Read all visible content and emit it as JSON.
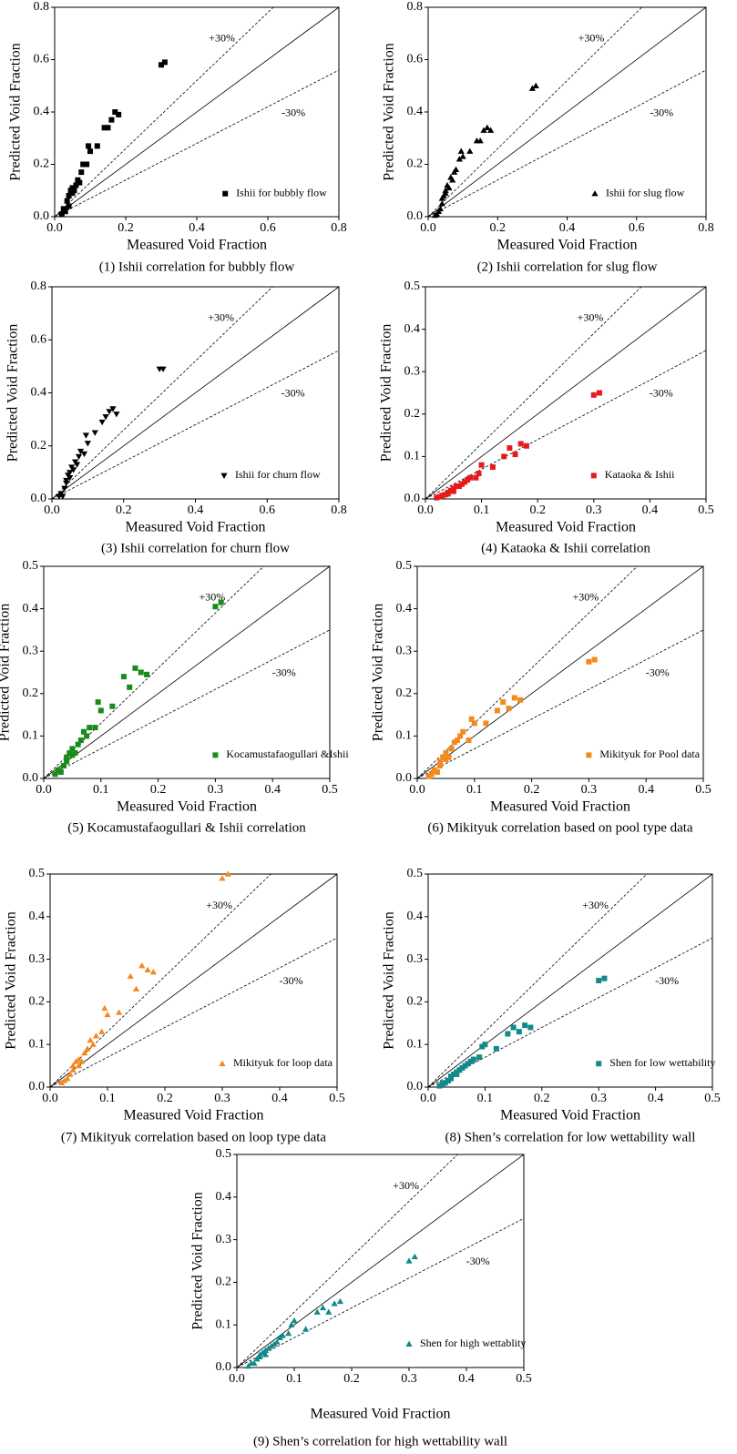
{
  "chart_data": [
    {
      "type": "scatter",
      "title": "(1) Ishii correlation for bubbly flow",
      "xlabel": "Measured Void Fraction",
      "ylabel": "Predicted Void Fraction",
      "xlim": [
        0,
        0.8
      ],
      "ylim": [
        0,
        0.8
      ],
      "xticks": [
        {
          "value": 0,
          "label": "0.0"
        },
        0.2,
        0.4,
        0.6,
        0.8
      ],
      "yticks": [
        {
          "value": 0,
          "label": "0.0"
        },
        0.2,
        0.4,
        0.6,
        0.8
      ],
      "reference_slopes": [
        1,
        1.3,
        0.7
      ],
      "annotations": [
        "+30%",
        "-30%"
      ],
      "legend": "lower right",
      "series": [
        {
          "name": "Ishii for bubbly flow",
          "color": "#000000",
          "marker": "square",
          "x": [
            0.02,
            0.025,
            0.03,
            0.035,
            0.04,
            0.04,
            0.045,
            0.05,
            0.05,
            0.055,
            0.06,
            0.065,
            0.07,
            0.075,
            0.08,
            0.09,
            0.095,
            0.1,
            0.12,
            0.14,
            0.15,
            0.16,
            0.17,
            0.18,
            0.3,
            0.31
          ],
          "values": [
            0.01,
            0.03,
            0.02,
            0.06,
            0.04,
            0.08,
            0.1,
            0.09,
            0.11,
            0.1,
            0.12,
            0.14,
            0.13,
            0.17,
            0.2,
            0.2,
            0.27,
            0.25,
            0.27,
            0.34,
            0.34,
            0.37,
            0.4,
            0.39,
            0.58,
            0.59
          ]
        }
      ]
    },
    {
      "type": "scatter",
      "title": "(2) Ishii correlation for slug flow",
      "xlabel": "Measured Void Fraction",
      "ylabel": "Predicted Void Fraction",
      "xlim": [
        0,
        0.8
      ],
      "ylim": [
        0,
        0.8
      ],
      "xticks": [
        {
          "value": 0,
          "label": "0.0"
        },
        0.2,
        0.4,
        0.6,
        0.8
      ],
      "yticks": [
        {
          "value": 0,
          "label": "0.0"
        },
        0.2,
        0.4,
        0.6,
        0.8
      ],
      "reference_slopes": [
        1,
        1.3,
        0.7
      ],
      "annotations": [
        "+30%",
        "-30%"
      ],
      "legend": "lower right",
      "series": [
        {
          "name": "Ishii for slug flow",
          "color": "#000000",
          "marker": "triangle-up",
          "x": [
            0.02,
            0.025,
            0.03,
            0.035,
            0.04,
            0.04,
            0.045,
            0.05,
            0.05,
            0.055,
            0.06,
            0.065,
            0.07,
            0.075,
            0.08,
            0.09,
            0.095,
            0.1,
            0.12,
            0.14,
            0.15,
            0.16,
            0.17,
            0.18,
            0.3,
            0.31
          ],
          "values": [
            0.005,
            0.01,
            0.02,
            0.03,
            0.05,
            0.07,
            0.08,
            0.09,
            0.1,
            0.12,
            0.11,
            0.15,
            0.14,
            0.17,
            0.18,
            0.22,
            0.25,
            0.23,
            0.25,
            0.29,
            0.29,
            0.33,
            0.34,
            0.33,
            0.49,
            0.5
          ]
        }
      ]
    },
    {
      "type": "scatter",
      "title": "(3) Ishii correlation for churn flow",
      "xlabel": "Measured Void Fraction",
      "ylabel": "Predicted Void Fraction",
      "xlim": [
        0,
        0.8
      ],
      "ylim": [
        0,
        0.8
      ],
      "xticks": [
        {
          "value": 0,
          "label": "0.0"
        },
        0.2,
        0.4,
        0.6,
        0.8
      ],
      "yticks": [
        {
          "value": 0,
          "label": "0.0"
        },
        0.2,
        0.4,
        0.6,
        0.8
      ],
      "reference_slopes": [
        1,
        1.3,
        0.7
      ],
      "annotations": [
        "+30%",
        "-30%"
      ],
      "legend": "lower right",
      "series": [
        {
          "name": "Ishii for churn flow",
          "color": "#000000",
          "marker": "triangle-down",
          "x": [
            0.02,
            0.025,
            0.03,
            0.035,
            0.04,
            0.04,
            0.045,
            0.05,
            0.05,
            0.055,
            0.06,
            0.065,
            0.07,
            0.075,
            0.08,
            0.09,
            0.095,
            0.1,
            0.12,
            0.14,
            0.15,
            0.16,
            0.17,
            0.18,
            0.3,
            0.31
          ],
          "values": [
            0.01,
            0.02,
            0.01,
            0.04,
            0.06,
            0.07,
            0.09,
            0.08,
            0.1,
            0.12,
            0.11,
            0.14,
            0.13,
            0.16,
            0.18,
            0.17,
            0.24,
            0.21,
            0.25,
            0.29,
            0.31,
            0.33,
            0.34,
            0.32,
            0.49,
            0.49
          ]
        }
      ]
    },
    {
      "type": "scatter",
      "title": "(4) Kataoka & Ishii correlation",
      "xlabel": "Measured Void Fraction",
      "ylabel": "Predicted Void Fraction",
      "xlim": [
        0,
        0.5
      ],
      "ylim": [
        0,
        0.5
      ],
      "xticks": [
        {
          "value": 0,
          "label": "0.0"
        },
        0.1,
        0.2,
        0.3,
        0.4,
        0.5
      ],
      "yticks": [
        {
          "value": 0,
          "label": "0.0"
        },
        0.1,
        0.2,
        0.3,
        0.4,
        0.5
      ],
      "reference_slopes": [
        1,
        1.3,
        0.7
      ],
      "annotations": [
        "+30%",
        "-30%"
      ],
      "legend": "lower right",
      "series": [
        {
          "name": "Kataoka & Ishii",
          "color": "#e8191a",
          "marker": "square",
          "x": [
            0.02,
            0.025,
            0.03,
            0.035,
            0.04,
            0.04,
            0.045,
            0.05,
            0.05,
            0.055,
            0.06,
            0.065,
            0.07,
            0.075,
            0.08,
            0.09,
            0.095,
            0.1,
            0.12,
            0.14,
            0.15,
            0.16,
            0.17,
            0.18,
            0.3,
            0.31
          ],
          "values": [
            0.003,
            0.005,
            0.008,
            0.01,
            0.015,
            0.012,
            0.02,
            0.025,
            0.018,
            0.03,
            0.03,
            0.035,
            0.04,
            0.045,
            0.05,
            0.05,
            0.06,
            0.08,
            0.075,
            0.1,
            0.12,
            0.105,
            0.13,
            0.125,
            0.245,
            0.25
          ]
        }
      ]
    },
    {
      "type": "scatter",
      "title": "(5) Kocamustafaogullari & Ishii correlation",
      "xlabel": "Measured Void Fraction",
      "ylabel": "Predicted Void Fraction",
      "xlim": [
        0,
        0.5
      ],
      "ylim": [
        0,
        0.5
      ],
      "xticks": [
        {
          "value": 0,
          "label": "0.0"
        },
        0.1,
        0.2,
        0.3,
        0.4,
        0.5
      ],
      "yticks": [
        {
          "value": 0,
          "label": "0.0"
        },
        0.1,
        0.2,
        0.3,
        0.4,
        0.5
      ],
      "reference_slopes": [
        1,
        1.3,
        0.7
      ],
      "annotations": [
        "+30%",
        "-30%"
      ],
      "legend": "lower right",
      "series": [
        {
          "name": "Kocamustafaogullari &Ishii",
          "color": "#1a8a1a",
          "marker": "square",
          "x": [
            0.02,
            0.025,
            0.03,
            0.035,
            0.04,
            0.04,
            0.045,
            0.05,
            0.05,
            0.055,
            0.06,
            0.065,
            0.07,
            0.075,
            0.08,
            0.09,
            0.095,
            0.1,
            0.12,
            0.14,
            0.15,
            0.16,
            0.17,
            0.18,
            0.3,
            0.31
          ],
          "values": [
            0.01,
            0.02,
            0.015,
            0.03,
            0.05,
            0.04,
            0.06,
            0.055,
            0.07,
            0.06,
            0.08,
            0.09,
            0.11,
            0.1,
            0.12,
            0.12,
            0.18,
            0.16,
            0.17,
            0.24,
            0.215,
            0.26,
            0.25,
            0.245,
            0.405,
            0.415
          ]
        }
      ]
    },
    {
      "type": "scatter",
      "title": "(6) Mikityuk correlation based on pool type data",
      "xlabel": "Measured Void Fraction",
      "ylabel": "Predicted Void Fraction",
      "xlim": [
        0,
        0.5
      ],
      "ylim": [
        0,
        0.5
      ],
      "xticks": [
        {
          "value": 0,
          "label": "0.0"
        },
        0.1,
        0.2,
        0.3,
        0.4,
        0.5
      ],
      "yticks": [
        {
          "value": 0,
          "label": "0.0"
        },
        0.1,
        0.2,
        0.3,
        0.4,
        0.5
      ],
      "reference_slopes": [
        1,
        1.3,
        0.7
      ],
      "annotations": [
        "+30%",
        "-30%"
      ],
      "legend": "lower right",
      "series": [
        {
          "name": "Mikityuk for Pool data",
          "color": "#f28a1e",
          "marker": "square",
          "x": [
            0.02,
            0.025,
            0.03,
            0.035,
            0.04,
            0.04,
            0.045,
            0.05,
            0.05,
            0.055,
            0.06,
            0.065,
            0.07,
            0.075,
            0.08,
            0.09,
            0.095,
            0.1,
            0.12,
            0.14,
            0.15,
            0.16,
            0.17,
            0.18,
            0.3,
            0.31
          ],
          "values": [
            0.005,
            0.01,
            0.02,
            0.015,
            0.03,
            0.04,
            0.05,
            0.045,
            0.06,
            0.05,
            0.07,
            0.085,
            0.09,
            0.1,
            0.11,
            0.09,
            0.14,
            0.13,
            0.13,
            0.16,
            0.18,
            0.165,
            0.19,
            0.185,
            0.275,
            0.28
          ]
        }
      ]
    },
    {
      "type": "scatter",
      "title": "(7) Mikityuk correlation based on loop type data",
      "xlabel": "Measured Void Fraction",
      "ylabel": "Predicted Void Fraction",
      "xlim": [
        0,
        0.5
      ],
      "ylim": [
        0,
        0.5
      ],
      "xticks": [
        {
          "value": 0,
          "label": "0.0"
        },
        0.1,
        0.2,
        0.3,
        0.4,
        0.5
      ],
      "yticks": [
        {
          "value": 0,
          "label": "0.0"
        },
        0.1,
        0.2,
        0.3,
        0.4,
        0.5
      ],
      "reference_slopes": [
        1,
        1.3,
        0.7
      ],
      "annotations": [
        "+30%",
        "-30%"
      ],
      "legend": "lower right",
      "series": [
        {
          "name": "Mikityuk for loop data",
          "color": "#f28a1e",
          "marker": "triangle-up",
          "x": [
            0.02,
            0.025,
            0.03,
            0.035,
            0.04,
            0.04,
            0.045,
            0.05,
            0.05,
            0.055,
            0.06,
            0.065,
            0.07,
            0.075,
            0.08,
            0.09,
            0.095,
            0.1,
            0.12,
            0.14,
            0.15,
            0.16,
            0.17,
            0.18,
            0.3,
            0.31
          ],
          "values": [
            0.01,
            0.015,
            0.02,
            0.03,
            0.04,
            0.05,
            0.06,
            0.05,
            0.065,
            0.06,
            0.08,
            0.09,
            0.11,
            0.1,
            0.12,
            0.13,
            0.185,
            0.17,
            0.175,
            0.26,
            0.23,
            0.285,
            0.275,
            0.27,
            0.49,
            0.5
          ]
        }
      ]
    },
    {
      "type": "scatter",
      "title": "(8) Shen’s correlation for low wettability wall",
      "xlabel": "Measured Void Fraction",
      "ylabel": "Predicted Void Fraction",
      "xlim": [
        0,
        0.5
      ],
      "ylim": [
        0,
        0.5
      ],
      "xticks": [
        {
          "value": 0,
          "label": "0.0"
        },
        0.1,
        0.2,
        0.3,
        0.4,
        0.5
      ],
      "yticks": [
        {
          "value": 0,
          "label": "0.0"
        },
        0.1,
        0.2,
        0.3,
        0.4,
        0.5
      ],
      "reference_slopes": [
        1,
        1.3,
        0.7
      ],
      "annotations": [
        "+30%",
        "-30%"
      ],
      "legend": "lower right",
      "series": [
        {
          "name": "Shen for low wettability",
          "color": "#108a8a",
          "marker": "square",
          "x": [
            0.02,
            0.025,
            0.03,
            0.035,
            0.04,
            0.04,
            0.045,
            0.05,
            0.05,
            0.055,
            0.06,
            0.065,
            0.07,
            0.075,
            0.08,
            0.09,
            0.095,
            0.1,
            0.12,
            0.14,
            0.15,
            0.16,
            0.17,
            0.18,
            0.3,
            0.31
          ],
          "values": [
            0.003,
            0.008,
            0.01,
            0.015,
            0.02,
            0.025,
            0.03,
            0.03,
            0.035,
            0.04,
            0.045,
            0.05,
            0.055,
            0.06,
            0.065,
            0.07,
            0.095,
            0.1,
            0.09,
            0.125,
            0.14,
            0.13,
            0.145,
            0.14,
            0.25,
            0.255
          ]
        }
      ]
    },
    {
      "type": "scatter",
      "title": "(9) Shen’s correlation for high wettability wall",
      "xlabel": "Measured Void Fraction",
      "ylabel": "Predicted Void Fraction",
      "xlim": [
        0,
        0.5
      ],
      "ylim": [
        0,
        0.5
      ],
      "xticks": [
        {
          "value": 0,
          "label": "0.0"
        },
        0.1,
        0.2,
        0.3,
        0.4,
        0.5
      ],
      "yticks": [
        {
          "value": 0,
          "label": "0.0"
        },
        0.1,
        0.2,
        0.3,
        0.4,
        0.5
      ],
      "reference_slopes": [
        1,
        1.3,
        0.7
      ],
      "annotations": [
        "+30%",
        "-30%"
      ],
      "legend": "lower right",
      "series": [
        {
          "name": "Shen for high wettablity",
          "color": "#108a8a",
          "marker": "triangle-up",
          "x": [
            0.02,
            0.025,
            0.03,
            0.035,
            0.04,
            0.04,
            0.045,
            0.05,
            0.05,
            0.055,
            0.06,
            0.065,
            0.07,
            0.075,
            0.08,
            0.09,
            0.095,
            0.1,
            0.12,
            0.14,
            0.15,
            0.16,
            0.17,
            0.18,
            0.3,
            0.31
          ],
          "values": [
            0.003,
            0.01,
            0.01,
            0.02,
            0.025,
            0.03,
            0.035,
            0.03,
            0.04,
            0.045,
            0.05,
            0.055,
            0.06,
            0.07,
            0.075,
            0.08,
            0.1,
            0.11,
            0.09,
            0.13,
            0.14,
            0.13,
            0.15,
            0.155,
            0.25,
            0.26
          ]
        }
      ]
    }
  ]
}
